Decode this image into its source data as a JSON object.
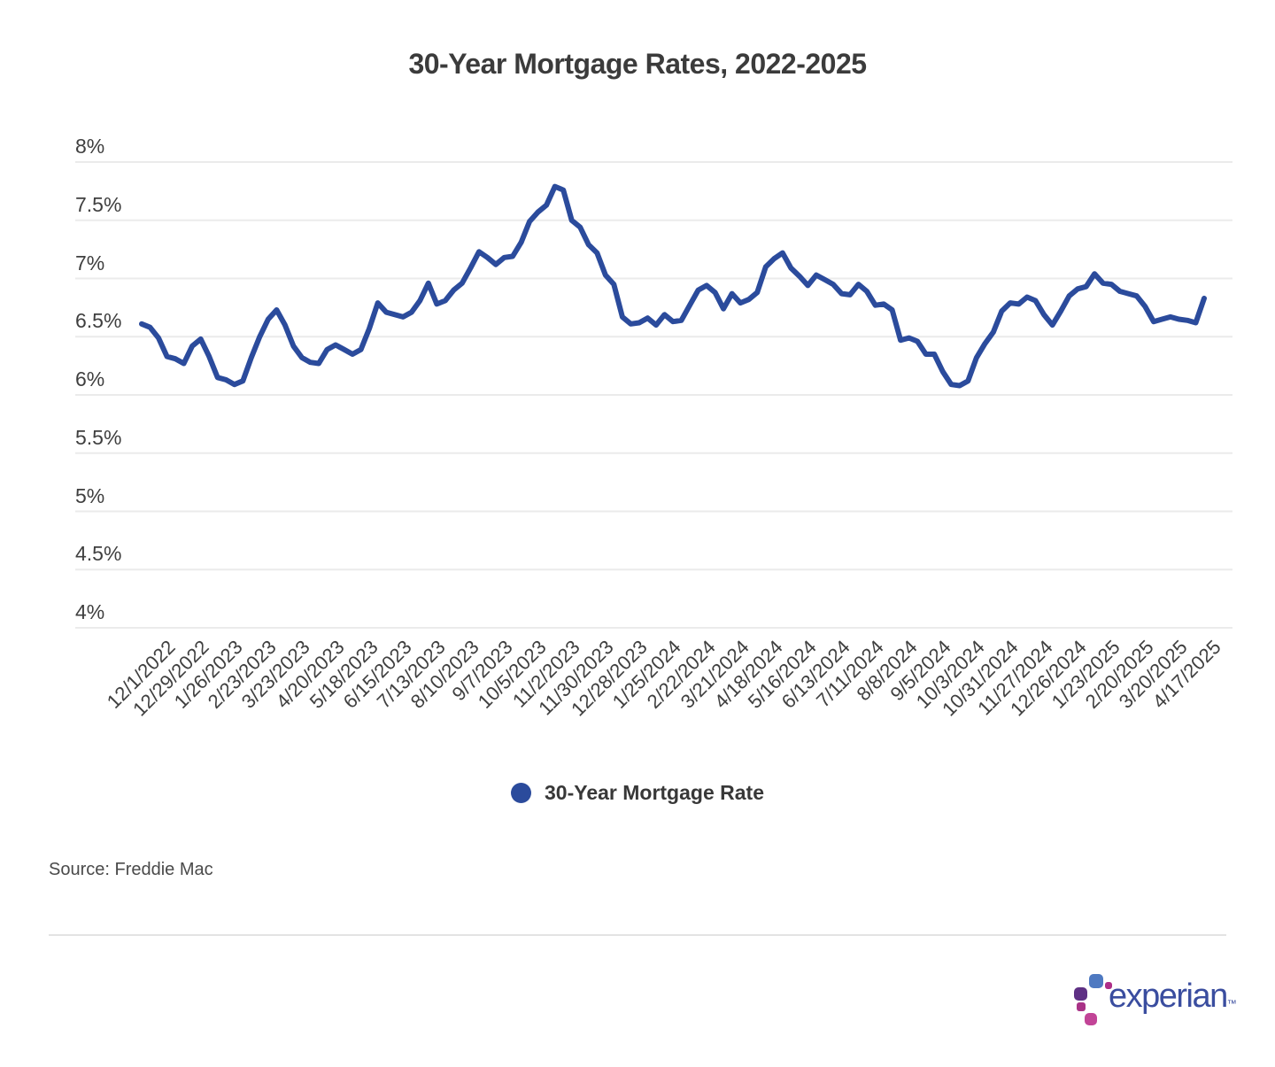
{
  "title": "30-Year Mortgage Rates, 2022-2025",
  "legend": {
    "label": "30-Year Mortgage Rate",
    "marker_color": "#2B4B9C"
  },
  "source_note": "Source: Freddie Mac",
  "footer": {
    "brand": "experian",
    "trademark": "™"
  },
  "chart_data": {
    "type": "line",
    "title": "30-Year Mortgage Rates, 2022-2025",
    "xlabel": "",
    "ylabel": "",
    "ylim": [
      4,
      8
    ],
    "grid": "horizontal",
    "legend_position": "bottom-center",
    "line_color": "#2B4B9C",
    "gridline_color": "#ebebeb",
    "y_tick_labels": [
      "8%",
      "7.5%",
      "7%",
      "6.5%",
      "6%",
      "5.5%",
      "5%",
      "4.5%",
      "4%"
    ],
    "y_tick_values": [
      8,
      7.5,
      7,
      6.5,
      6,
      5.5,
      5,
      4.5,
      4
    ],
    "x_tick_labels": [
      "12/1/2022",
      "12/29/2022",
      "1/26/2023",
      "2/23/2023",
      "3/23/2023",
      "4/20/2023",
      "5/18/2023",
      "6/15/2023",
      "7/13/2023",
      "8/10/2023",
      "9/7/2023",
      "10/5/2023",
      "11/2/2023",
      "11/30/2023",
      "12/28/2023",
      "1/25/2024",
      "2/22/2024",
      "3/21/2024",
      "4/18/2024",
      "5/16/2024",
      "6/13/2024",
      "7/11/2024",
      "8/8/2024",
      "9/5/2024",
      "10/3/2024",
      "10/31/2024",
      "11/27/2024",
      "12/26/2024",
      "1/23/2025",
      "2/20/2025",
      "3/20/2025",
      "4/17/2025"
    ],
    "x_tick_first_point_index": 2,
    "x_tick_point_step": 4,
    "series": [
      {
        "name": "30-Year Mortgage Rate",
        "color": "#2B4B9C",
        "dates": [
          "11/17/2022",
          "11/23/2022",
          "12/1/2022",
          "12/8/2022",
          "12/15/2022",
          "12/22/2022",
          "12/29/2022",
          "1/5/2023",
          "1/12/2023",
          "1/19/2023",
          "1/26/2023",
          "2/2/2023",
          "2/9/2023",
          "2/16/2023",
          "2/23/2023",
          "3/2/2023",
          "3/9/2023",
          "3/16/2023",
          "3/23/2023",
          "3/30/2023",
          "4/6/2023",
          "4/13/2023",
          "4/20/2023",
          "4/27/2023",
          "5/4/2023",
          "5/11/2023",
          "5/18/2023",
          "5/25/2023",
          "6/1/2023",
          "6/8/2023",
          "6/15/2023",
          "6/22/2023",
          "6/29/2023",
          "7/6/2023",
          "7/13/2023",
          "7/20/2023",
          "7/27/2023",
          "8/3/2023",
          "8/10/2023",
          "8/17/2023",
          "8/24/2023",
          "8/31/2023",
          "9/7/2023",
          "9/14/2023",
          "9/21/2023",
          "9/28/2023",
          "10/5/2023",
          "10/12/2023",
          "10/19/2023",
          "10/26/2023",
          "11/2/2023",
          "11/9/2023",
          "11/16/2023",
          "11/22/2023",
          "11/30/2023",
          "12/7/2023",
          "12/14/2023",
          "12/21/2023",
          "12/28/2023",
          "1/4/2024",
          "1/11/2024",
          "1/18/2024",
          "1/25/2024",
          "2/1/2024",
          "2/8/2024",
          "2/15/2024",
          "2/22/2024",
          "2/29/2024",
          "3/7/2024",
          "3/14/2024",
          "3/21/2024",
          "3/28/2024",
          "4/4/2024",
          "4/11/2024",
          "4/18/2024",
          "4/25/2024",
          "5/2/2024",
          "5/9/2024",
          "5/16/2024",
          "5/23/2024",
          "5/30/2024",
          "6/6/2024",
          "6/13/2024",
          "6/20/2024",
          "6/27/2024",
          "7/3/2024",
          "7/11/2024",
          "7/18/2024",
          "7/25/2024",
          "8/1/2024",
          "8/8/2024",
          "8/15/2024",
          "8/22/2024",
          "8/29/2024",
          "9/5/2024",
          "9/12/2024",
          "9/19/2024",
          "9/26/2024",
          "10/3/2024",
          "10/10/2024",
          "10/17/2024",
          "10/24/2024",
          "10/31/2024",
          "11/7/2024",
          "11/14/2024",
          "11/21/2024",
          "11/27/2024",
          "12/5/2024",
          "12/12/2024",
          "12/19/2024",
          "12/26/2024",
          "1/2/2025",
          "1/9/2025",
          "1/16/2025",
          "1/23/2025",
          "1/30/2025",
          "2/6/2025",
          "2/13/2025",
          "2/20/2025",
          "2/27/2025",
          "3/6/2025",
          "3/13/2025",
          "3/20/2025",
          "3/27/2025",
          "4/3/2025",
          "4/10/2025",
          "4/17/2025"
        ],
        "values": [
          6.61,
          6.58,
          6.49,
          6.33,
          6.31,
          6.27,
          6.42,
          6.48,
          6.33,
          6.15,
          6.13,
          6.09,
          6.12,
          6.32,
          6.5,
          6.65,
          6.73,
          6.6,
          6.42,
          6.32,
          6.28,
          6.27,
          6.39,
          6.43,
          6.39,
          6.35,
          6.39,
          6.57,
          6.79,
          6.71,
          6.69,
          6.67,
          6.71,
          6.81,
          6.96,
          6.78,
          6.81,
          6.9,
          6.96,
          7.09,
          7.23,
          7.18,
          7.12,
          7.18,
          7.19,
          7.31,
          7.49,
          7.57,
          7.63,
          7.79,
          7.76,
          7.5,
          7.44,
          7.29,
          7.22,
          7.03,
          6.95,
          6.67,
          6.61,
          6.62,
          6.66,
          6.6,
          6.69,
          6.63,
          6.64,
          6.77,
          6.9,
          6.94,
          6.88,
          6.74,
          6.87,
          6.79,
          6.82,
          6.88,
          7.1,
          7.17,
          7.22,
          7.09,
          7.02,
          6.94,
          7.03,
          6.99,
          6.95,
          6.87,
          6.86,
          6.95,
          6.89,
          6.77,
          6.78,
          6.73,
          6.47,
          6.49,
          6.46,
          6.35,
          6.35,
          6.2,
          6.09,
          6.08,
          6.12,
          6.32,
          6.44,
          6.54,
          6.72,
          6.79,
          6.78,
          6.84,
          6.81,
          6.69,
          6.6,
          6.72,
          6.85,
          6.91,
          6.93,
          7.04,
          6.96,
          6.95,
          6.89,
          6.87,
          6.85,
          6.76,
          6.63,
          6.65,
          6.67,
          6.65,
          6.64,
          6.62,
          6.83
        ]
      }
    ]
  }
}
